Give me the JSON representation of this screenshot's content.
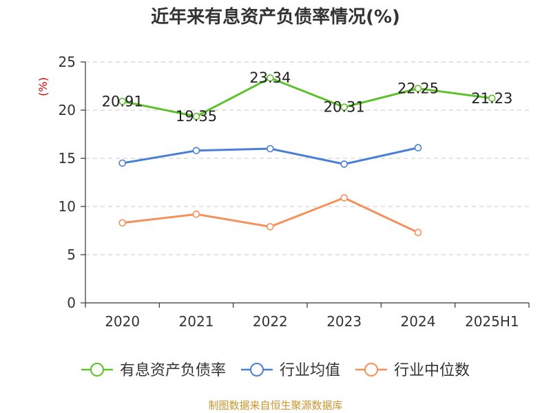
{
  "chart_data": {
    "type": "line",
    "title": "近年来有息资产负债率情况(%)",
    "ylabel": "(%)",
    "categories": [
      "2020",
      "2021",
      "2022",
      "2023",
      "2024",
      "2025H1"
    ],
    "ylim": [
      0,
      25
    ],
    "yticks": [
      "0",
      "5",
      "10",
      "15",
      "20",
      "25"
    ],
    "grid": true,
    "legend_position": "bottom",
    "series": [
      {
        "name": "有息资产负债率",
        "color": "#5cc12a",
        "values": [
          20.91,
          19.35,
          23.34,
          20.31,
          22.25,
          21.23
        ],
        "labels": [
          "20.91",
          "19.35",
          "23.34",
          "20.31",
          "22.25",
          "21.23"
        ]
      },
      {
        "name": "行业均值",
        "color": "#4a7fd6",
        "values": [
          14.5,
          15.8,
          16.0,
          14.4,
          16.1,
          null
        ]
      },
      {
        "name": "行业中位数",
        "color": "#f5905a",
        "values": [
          8.3,
          9.2,
          7.9,
          10.9,
          7.3,
          null
        ]
      }
    ],
    "source": "制图数据来自恒生聚源数据库"
  }
}
